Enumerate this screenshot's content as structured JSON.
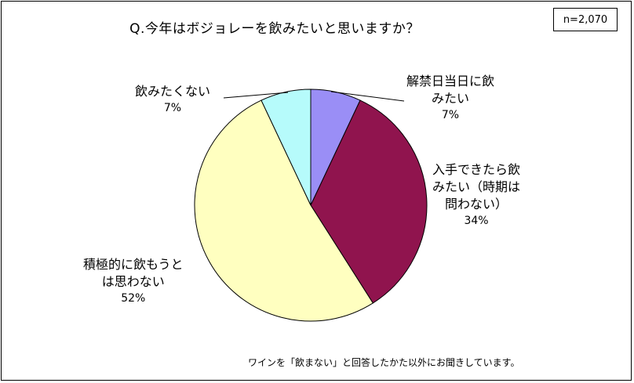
{
  "title": "Q.今年はボジョレーを飲みたいと思いますか？",
  "sample_size": "n=2,070",
  "footnote": "ワインを「飲まない」と回答したかた以外にお聞きしています。",
  "labels": {
    "l1": {
      "line1": "解禁日当日に飲",
      "line2": "みたい",
      "pct": "7%"
    },
    "l2": {
      "line1": "入手できたら飲",
      "line2": "みたい（時期は",
      "line3": "問わない）",
      "pct": "34%"
    },
    "l3": {
      "line1": "積極的に飲もうと",
      "line2": "は思わない",
      "pct": "52%"
    },
    "l4": {
      "line1": "飲みたくない",
      "pct": "7%"
    }
  },
  "chart_data": {
    "type": "pie",
    "title": "Q.今年はボジョレーを飲みたいと思いますか？",
    "unit": "%",
    "slices": [
      {
        "label": "解禁日当日に飲みたい",
        "value": 7,
        "color": "#9a8ef6"
      },
      {
        "label": "入手できたら飲みたい（時期は問わない）",
        "value": 34,
        "color": "#90144e"
      },
      {
        "label": "積極的に飲もうとは思わない",
        "value": 52,
        "color": "#ffffc0"
      },
      {
        "label": "飲みたくない",
        "value": 7,
        "color": "#b6fbfb"
      }
    ],
    "start": "12 o'clock, clockwise"
  }
}
